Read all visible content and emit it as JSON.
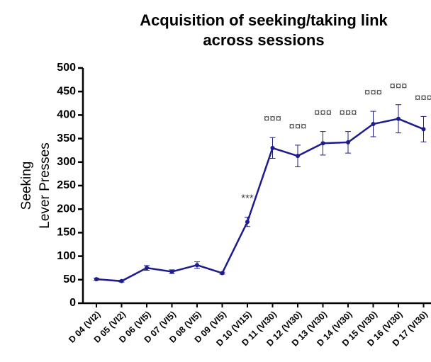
{
  "chart_data": {
    "type": "line",
    "title": [
      "Acquisition of seeking/taking link",
      "across sessions"
    ],
    "ylabel": [
      "Seeking",
      "Lever Presses"
    ],
    "categories": [
      "D 04 (VI2)",
      "D 05 (VI2)",
      "D 06 (VI5)",
      "D 07 (VI5)",
      "D 08 (VI5)",
      "D 09 (VI5)",
      "D 10 (VI15)",
      "D 11 (VI30)",
      "D 12 (VI30)",
      "D 13 (VI30)",
      "D 14 (VI30)",
      "D 15 (VI30)",
      "D 16 (VI30)",
      "D 17 (VI30)"
    ],
    "values": [
      51,
      47,
      75,
      67,
      81,
      64,
      173,
      330,
      313,
      340,
      342,
      381,
      392,
      370
    ],
    "errors": [
      2,
      2,
      5,
      4,
      7,
      2,
      10,
      22,
      23,
      25,
      23,
      27,
      30,
      27
    ],
    "annotations": [
      null,
      null,
      null,
      null,
      null,
      null,
      "***",
      "¤¤¤",
      "¤¤¤",
      "¤¤¤",
      "¤¤¤",
      "¤¤¤",
      "¤¤¤",
      "¤¤¤"
    ],
    "color": "#1c1c8a",
    "ylim": [
      0,
      500
    ],
    "yticks": [
      0,
      50,
      100,
      150,
      200,
      250,
      300,
      350,
      400,
      450,
      500
    ]
  }
}
